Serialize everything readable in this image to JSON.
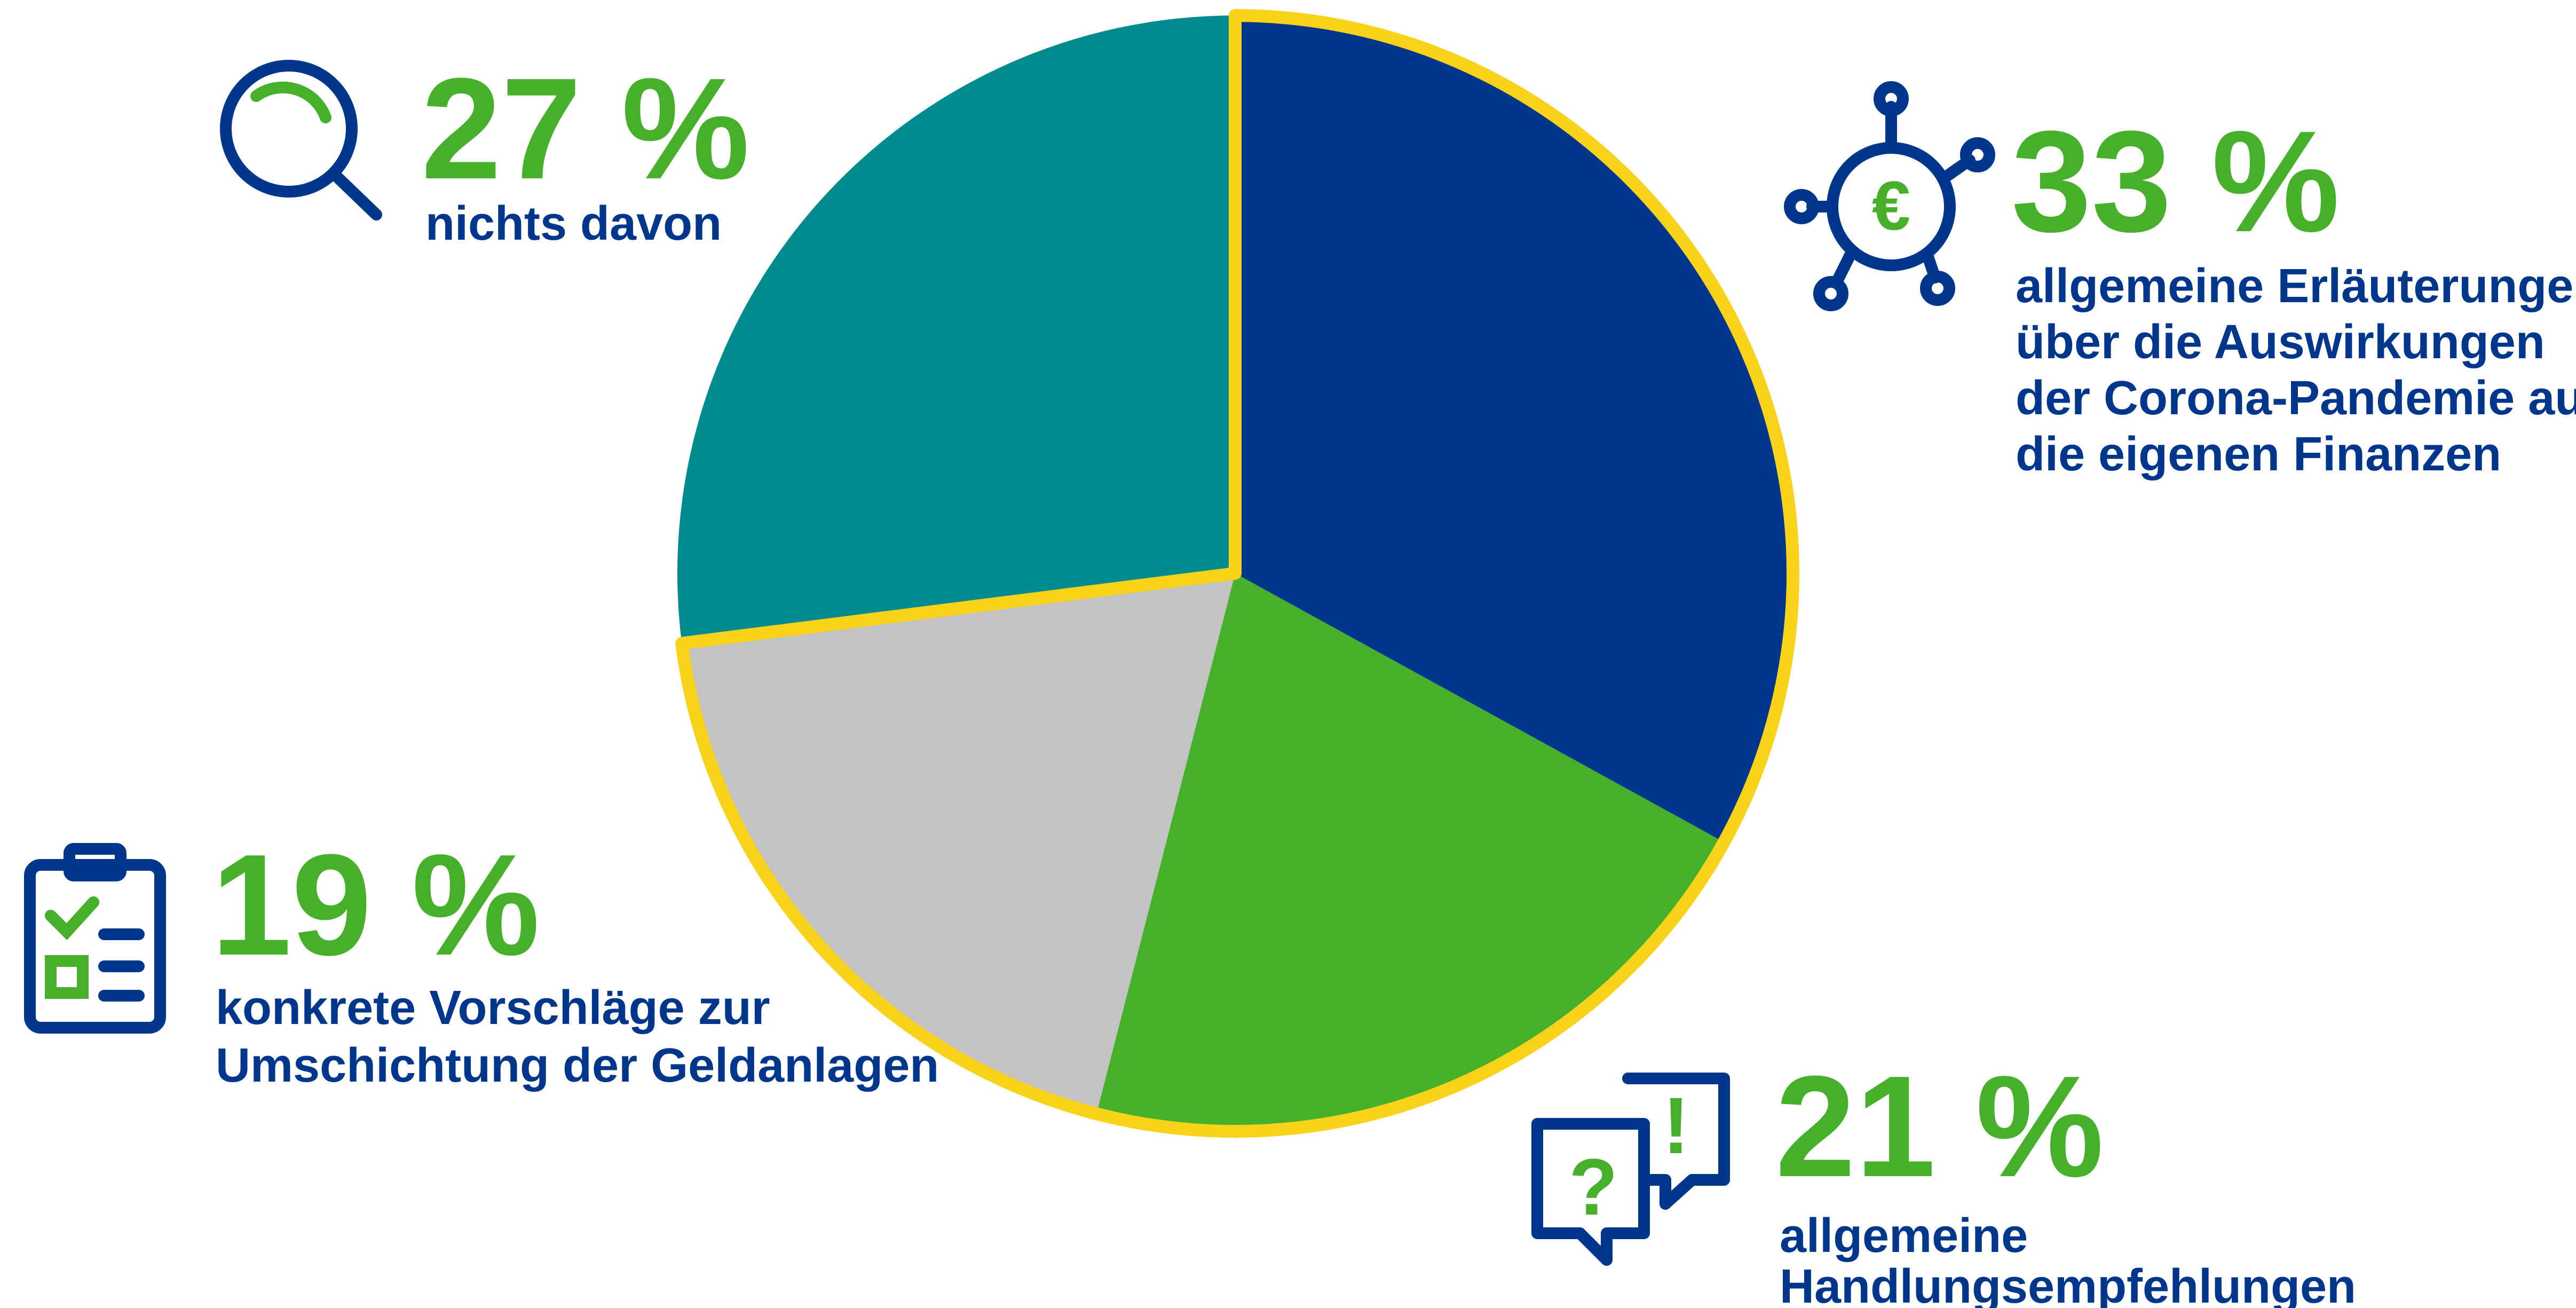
{
  "chart_data": {
    "type": "pie",
    "categories": [
      [
        "allgemeine Erläuterungen",
        "über die Auswirkungen",
        "der Corona-Pandemie auf",
        "die eigenen Finanzen"
      ],
      [
        "allgemeine",
        "Handlungsempfehlungen"
      ],
      [
        "konkrete Vorschläge zur",
        "Umschichtung der Geldanlagen"
      ],
      [
        "nichts davon"
      ]
    ],
    "values": [
      33,
      21,
      19,
      27
    ],
    "value_labels": [
      "33 %",
      "21 %",
      "19 %",
      "27 %"
    ],
    "colors": [
      "#00368c",
      "#46b02a",
      "#c3c3c3",
      "#008c8e"
    ]
  }
}
